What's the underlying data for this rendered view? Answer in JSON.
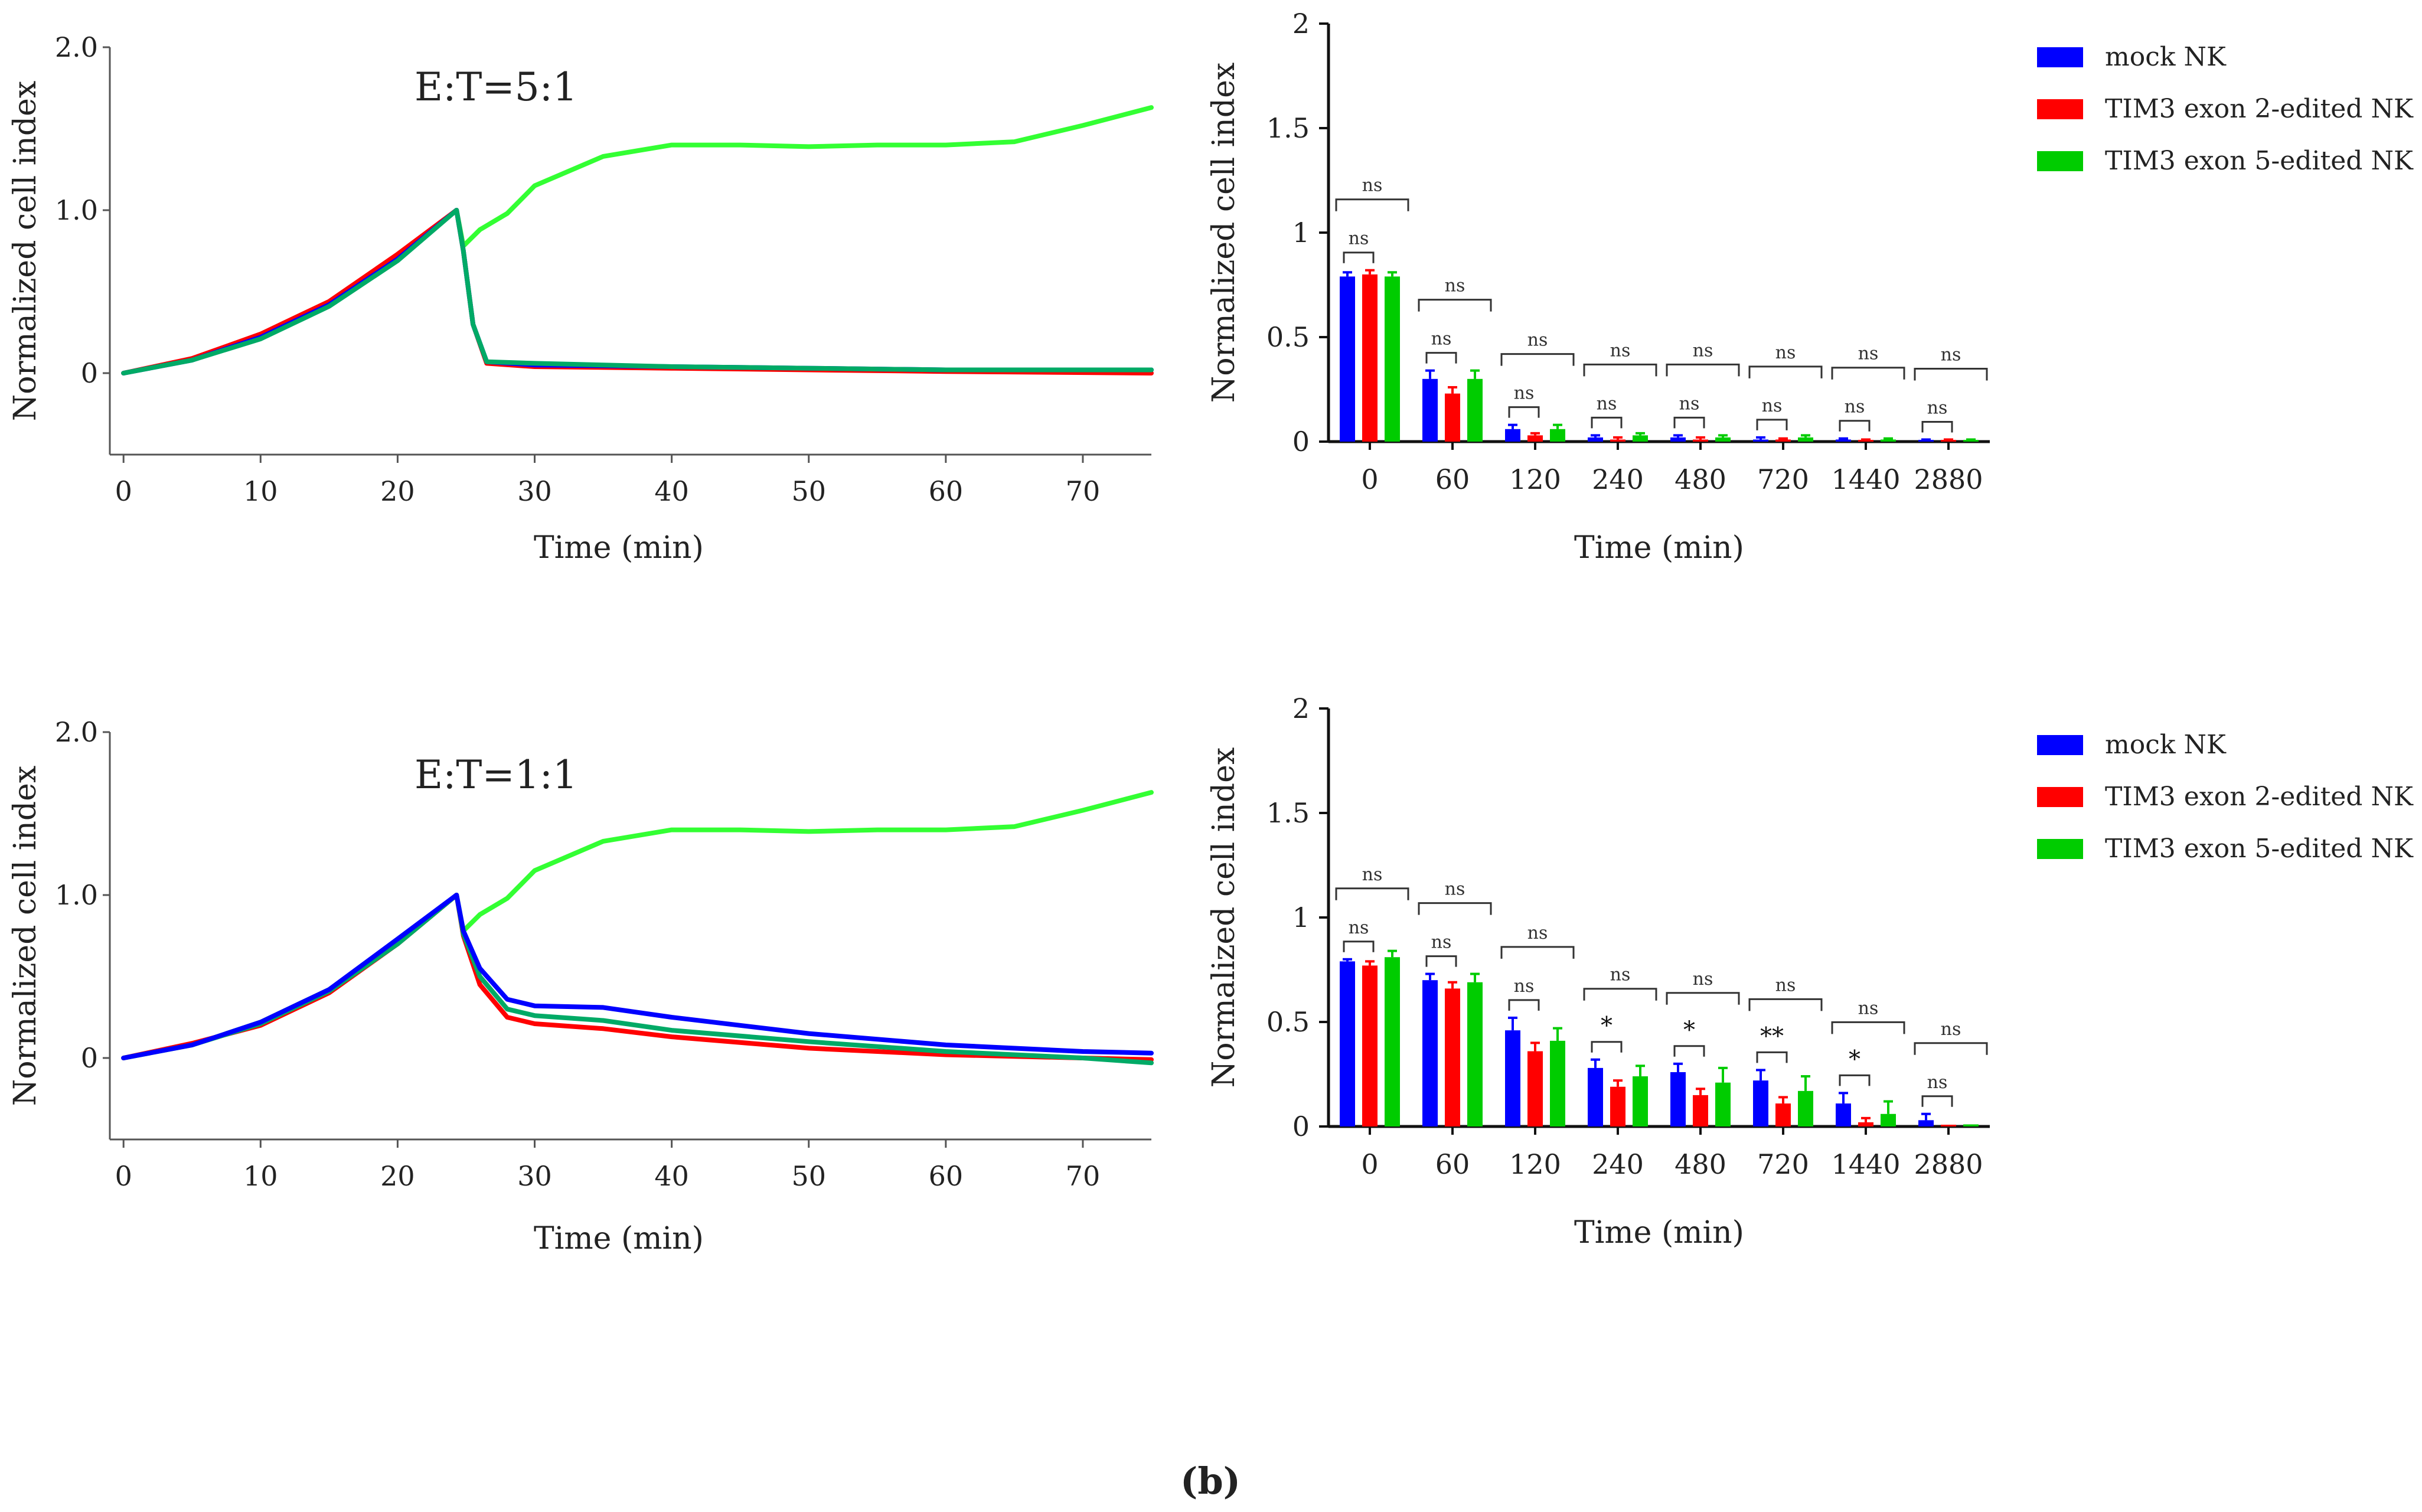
{
  "panel_label": "(b)",
  "legend_entries": [
    "mock NK",
    "TIM3 exon 2-edited NK",
    "TIM3 exon 5-edited NK"
  ],
  "series_colors": {
    "mock NK": "#0000ff",
    "TIM3 exon 2-edited NK": "#ff0000",
    "TIM3 exon 5-edited NK": "#00cc00",
    "control": "#33ff33"
  },
  "chart_data": [
    {
      "id": "line-5to1",
      "type": "line",
      "annotation": "E:T=5:1",
      "xlabel": "Time (min)",
      "ylabel": "Normalized cell index",
      "xlim": [
        -1,
        75
      ],
      "ylim": [
        -0.5,
        2.0
      ],
      "x_ticks": [
        0,
        10,
        20,
        30,
        40,
        50,
        60,
        70
      ],
      "y_ticks": [
        {
          "v": 0,
          "label": "0"
        },
        {
          "v": 1,
          "label": "1.0"
        },
        {
          "v": 2,
          "label": "2.0"
        }
      ],
      "series": [
        {
          "key": "control",
          "color": "#33ff33",
          "points": [
            [
              0,
              0
            ],
            [
              5,
              0.08
            ],
            [
              10,
              0.22
            ],
            [
              15,
              0.42
            ],
            [
              20,
              0.7
            ],
            [
              24.3,
              1.0
            ],
            [
              24.8,
              0.78
            ],
            [
              26,
              0.88
            ],
            [
              28,
              0.98
            ],
            [
              30,
              1.15
            ],
            [
              35,
              1.33
            ],
            [
              40,
              1.4
            ],
            [
              45,
              1.4
            ],
            [
              50,
              1.39
            ],
            [
              55,
              1.4
            ],
            [
              60,
              1.4
            ],
            [
              65,
              1.42
            ],
            [
              70,
              1.52
            ],
            [
              75,
              1.63
            ]
          ]
        },
        {
          "key": "TIM3 exon 2-edited NK",
          "color": "#ff0000",
          "points": [
            [
              0,
              0
            ],
            [
              5,
              0.09
            ],
            [
              10,
              0.24
            ],
            [
              15,
              0.44
            ],
            [
              20,
              0.73
            ],
            [
              24.3,
              1.0
            ],
            [
              24.8,
              0.75
            ],
            [
              25.5,
              0.3
            ],
            [
              26.5,
              0.06
            ],
            [
              30,
              0.04
            ],
            [
              40,
              0.03
            ],
            [
              50,
              0.02
            ],
            [
              60,
              0.01
            ],
            [
              75,
              0.0
            ]
          ]
        },
        {
          "key": "mock NK",
          "color": "#0000ff",
          "points": [
            [
              0,
              0
            ],
            [
              5,
              0.08
            ],
            [
              10,
              0.22
            ],
            [
              15,
              0.42
            ],
            [
              20,
              0.7
            ],
            [
              24.3,
              1.0
            ],
            [
              24.8,
              0.75
            ],
            [
              25.5,
              0.3
            ],
            [
              26.5,
              0.07
            ],
            [
              30,
              0.05
            ],
            [
              40,
              0.04
            ],
            [
              50,
              0.03
            ],
            [
              60,
              0.02
            ],
            [
              75,
              0.02
            ]
          ]
        },
        {
          "key": "TIM3 exon 5-edited NK",
          "color": "#00aa66",
          "points": [
            [
              0,
              0
            ],
            [
              5,
              0.08
            ],
            [
              10,
              0.21
            ],
            [
              15,
              0.41
            ],
            [
              20,
              0.69
            ],
            [
              24.3,
              1.0
            ],
            [
              24.8,
              0.75
            ],
            [
              25.5,
              0.3
            ],
            [
              26.5,
              0.07
            ],
            [
              30,
              0.06
            ],
            [
              40,
              0.04
            ],
            [
              50,
              0.03
            ],
            [
              60,
              0.02
            ],
            [
              75,
              0.02
            ]
          ]
        }
      ]
    },
    {
      "id": "bar-5to1",
      "type": "bar",
      "xlabel": "Time (min)",
      "ylabel": "Normalized cell index",
      "ylim": [
        0,
        2
      ],
      "y_ticks": [
        {
          "v": 0,
          "label": "0"
        },
        {
          "v": 0.5,
          "label": "0.5"
        },
        {
          "v": 1,
          "label": "1"
        },
        {
          "v": 1.5,
          "label": "1.5"
        },
        {
          "v": 2,
          "label": "2"
        }
      ],
      "categories": [
        "0",
        "60",
        "120",
        "240",
        "480",
        "720",
        "1440",
        "2880"
      ],
      "series": [
        {
          "name": "mock NK",
          "color": "#0000ff",
          "values": [
            0.79,
            0.3,
            0.06,
            0.02,
            0.02,
            0.01,
            0.01,
            0.005
          ],
          "errors": [
            0.02,
            0.04,
            0.02,
            0.01,
            0.01,
            0.01,
            0.005,
            0.005
          ]
        },
        {
          "name": "TIM3 exon 2-edited NK",
          "color": "#ff0000",
          "values": [
            0.8,
            0.23,
            0.03,
            0.01,
            0.01,
            0.01,
            0.005,
            0.005
          ],
          "errors": [
            0.02,
            0.03,
            0.01,
            0.01,
            0.01,
            0.005,
            0.005,
            0.005
          ]
        },
        {
          "name": "TIM3 exon 5-edited NK",
          "color": "#00cc00",
          "values": [
            0.79,
            0.3,
            0.06,
            0.03,
            0.02,
            0.02,
            0.01,
            0.005
          ],
          "errors": [
            0.02,
            0.04,
            0.02,
            0.01,
            0.01,
            0.01,
            0.005,
            0.005
          ]
        }
      ],
      "significance": [
        {
          "short": "ns",
          "long": "ns"
        },
        {
          "short": "ns",
          "long": "ns"
        },
        {
          "short": "ns",
          "long": "ns"
        },
        {
          "short": "ns",
          "long": "ns"
        },
        {
          "short": "ns",
          "long": "ns"
        },
        {
          "short": "ns",
          "long": "ns"
        },
        {
          "short": "ns",
          "long": "ns"
        },
        {
          "short": "ns",
          "long": "ns"
        }
      ]
    },
    {
      "id": "line-1to1",
      "type": "line",
      "annotation": "E:T=1:1",
      "xlabel": "Time (min)",
      "ylabel": "Normalized cell index",
      "xlim": [
        -1,
        75
      ],
      "ylim": [
        -0.5,
        2.0
      ],
      "x_ticks": [
        0,
        10,
        20,
        30,
        40,
        50,
        60,
        70
      ],
      "y_ticks": [
        {
          "v": 0,
          "label": "0"
        },
        {
          "v": 1,
          "label": "1.0"
        },
        {
          "v": 2,
          "label": "2.0"
        }
      ],
      "series": [
        {
          "key": "control",
          "color": "#33ff33",
          "points": [
            [
              0,
              0
            ],
            [
              5,
              0.08
            ],
            [
              10,
              0.22
            ],
            [
              15,
              0.42
            ],
            [
              20,
              0.7
            ],
            [
              24.3,
              1.0
            ],
            [
              24.8,
              0.78
            ],
            [
              26,
              0.88
            ],
            [
              28,
              0.98
            ],
            [
              30,
              1.15
            ],
            [
              35,
              1.33
            ],
            [
              40,
              1.4
            ],
            [
              45,
              1.4
            ],
            [
              50,
              1.39
            ],
            [
              55,
              1.4
            ],
            [
              60,
              1.4
            ],
            [
              65,
              1.42
            ],
            [
              70,
              1.52
            ],
            [
              75,
              1.63
            ]
          ]
        },
        {
          "key": "TIM3 exon 2-edited NK",
          "color": "#ff0000",
          "points": [
            [
              0,
              0
            ],
            [
              5,
              0.09
            ],
            [
              10,
              0.2
            ],
            [
              15,
              0.4
            ],
            [
              20,
              0.7
            ],
            [
              24.3,
              1.0
            ],
            [
              24.8,
              0.75
            ],
            [
              26,
              0.45
            ],
            [
              28,
              0.25
            ],
            [
              30,
              0.21
            ],
            [
              35,
              0.18
            ],
            [
              40,
              0.13
            ],
            [
              50,
              0.06
            ],
            [
              60,
              0.02
            ],
            [
              70,
              0.0
            ],
            [
              75,
              -0.01
            ]
          ]
        },
        {
          "key": "TIM3 exon 5-edited NK",
          "color": "#00aa66",
          "points": [
            [
              0,
              0
            ],
            [
              5,
              0.08
            ],
            [
              10,
              0.21
            ],
            [
              15,
              0.41
            ],
            [
              20,
              0.7
            ],
            [
              24.3,
              1.0
            ],
            [
              24.8,
              0.76
            ],
            [
              26,
              0.5
            ],
            [
              28,
              0.3
            ],
            [
              30,
              0.26
            ],
            [
              35,
              0.23
            ],
            [
              40,
              0.17
            ],
            [
              50,
              0.1
            ],
            [
              60,
              0.04
            ],
            [
              70,
              0.0
            ],
            [
              75,
              -0.03
            ]
          ]
        },
        {
          "key": "mock NK",
          "color": "#0000ff",
          "points": [
            [
              0,
              0
            ],
            [
              5,
              0.08
            ],
            [
              10,
              0.22
            ],
            [
              15,
              0.42
            ],
            [
              20,
              0.73
            ],
            [
              24.3,
              1.0
            ],
            [
              24.8,
              0.78
            ],
            [
              26,
              0.55
            ],
            [
              28,
              0.36
            ],
            [
              30,
              0.32
            ],
            [
              35,
              0.31
            ],
            [
              40,
              0.25
            ],
            [
              50,
              0.15
            ],
            [
              60,
              0.08
            ],
            [
              70,
              0.04
            ],
            [
              75,
              0.03
            ]
          ]
        }
      ]
    },
    {
      "id": "bar-1to1",
      "type": "bar",
      "xlabel": "Time (min)",
      "ylabel": "Normalized cell index",
      "ylim": [
        0,
        2
      ],
      "y_ticks": [
        {
          "v": 0,
          "label": "0"
        },
        {
          "v": 0.5,
          "label": "0.5"
        },
        {
          "v": 1,
          "label": "1"
        },
        {
          "v": 1.5,
          "label": "1.5"
        },
        {
          "v": 2,
          "label": "2"
        }
      ],
      "categories": [
        "0",
        "60",
        "120",
        "240",
        "480",
        "720",
        "1440",
        "2880"
      ],
      "series": [
        {
          "name": "mock NK",
          "color": "#0000ff",
          "values": [
            0.79,
            0.7,
            0.46,
            0.28,
            0.26,
            0.22,
            0.11,
            0.03
          ],
          "errors": [
            0.01,
            0.03,
            0.06,
            0.04,
            0.04,
            0.05,
            0.05,
            0.03
          ]
        },
        {
          "name": "TIM3 exon 2-edited NK",
          "color": "#ff0000",
          "values": [
            0.77,
            0.66,
            0.36,
            0.19,
            0.15,
            0.11,
            0.02,
            0.0
          ],
          "errors": [
            0.02,
            0.03,
            0.04,
            0.03,
            0.03,
            0.03,
            0.02,
            0.0
          ]
        },
        {
          "name": "TIM3 exon 5-edited NK",
          "color": "#00cc00",
          "values": [
            0.81,
            0.69,
            0.41,
            0.24,
            0.21,
            0.17,
            0.06,
            0.01
          ],
          "errors": [
            0.03,
            0.04,
            0.06,
            0.05,
            0.07,
            0.07,
            0.06,
            0.0
          ]
        }
      ],
      "significance": [
        {
          "short": "ns",
          "long": "ns"
        },
        {
          "short": "ns",
          "long": "ns"
        },
        {
          "short": "ns",
          "long": "ns"
        },
        {
          "short": "*",
          "long": "ns"
        },
        {
          "short": "*",
          "long": "ns"
        },
        {
          "short": "**",
          "long": "ns"
        },
        {
          "short": "*",
          "long": "ns"
        },
        {
          "short": "ns",
          "long": "ns"
        }
      ]
    }
  ]
}
